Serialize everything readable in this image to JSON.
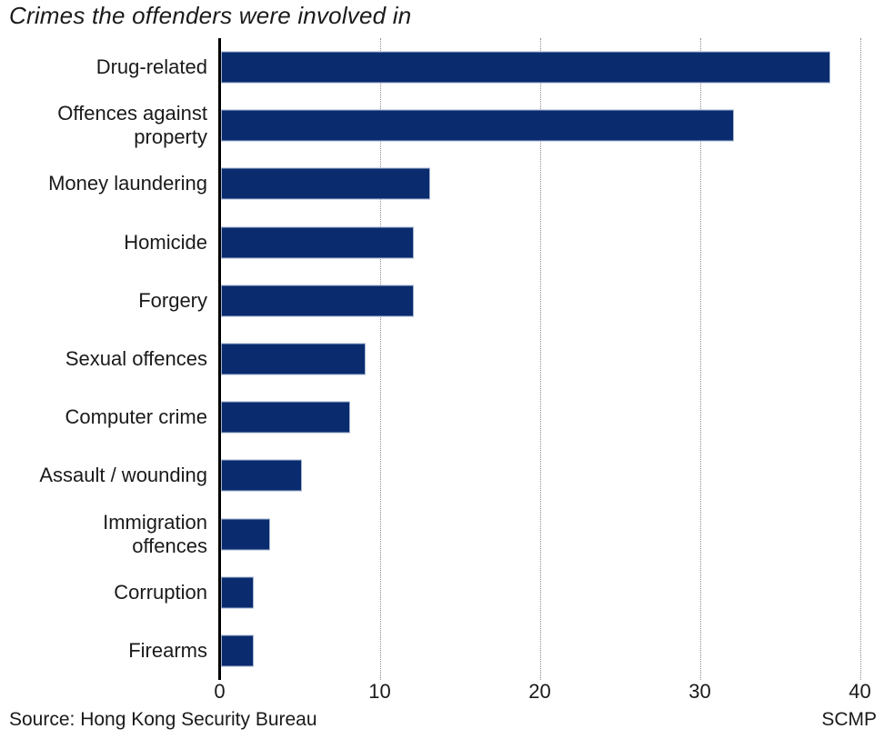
{
  "title": "Crimes the offenders were involved in",
  "footer": {
    "source": "Source: Hong Kong Security Bureau",
    "credit": "SCMP"
  },
  "colors": {
    "bar_fill": "#0a2b6e",
    "bar_border": "#a4b6d2",
    "axis_line": "#000000",
    "gridline": "#8c8c8c",
    "text": "#1a1a1a"
  },
  "chart_data": {
    "type": "bar",
    "orientation": "horizontal",
    "title": "Crimes the offenders were involved in",
    "categories": [
      "Drug-related",
      "Offences against\nproperty",
      "Money laundering",
      "Homicide",
      "Forgery",
      "Sexual offences",
      "Computer crime",
      "Assault / wounding",
      "Immigration\noffences",
      "Corruption",
      "Firearms"
    ],
    "values": [
      38,
      32,
      13,
      12,
      12,
      9,
      8,
      5,
      3,
      2,
      2
    ],
    "xlabel": "",
    "ylabel": "",
    "xlim": [
      0,
      40
    ],
    "xticks": [
      0,
      10,
      20,
      30,
      40
    ],
    "grid": "vertical-dotted",
    "legend": false,
    "source": "Hong Kong Security Bureau",
    "credit": "SCMP"
  }
}
